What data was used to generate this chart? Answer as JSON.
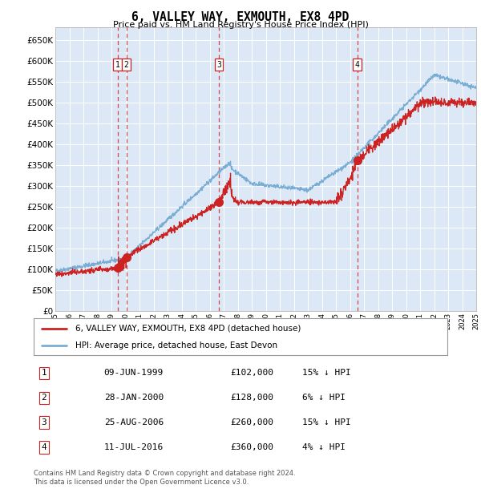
{
  "title": "6, VALLEY WAY, EXMOUTH, EX8 4PD",
  "subtitle": "Price paid vs. HM Land Registry's House Price Index (HPI)",
  "legend_line1": "6, VALLEY WAY, EXMOUTH, EX8 4PD (detached house)",
  "legend_line2": "HPI: Average price, detached house, East Devon",
  "table_rows": [
    [
      "1",
      "09-JUN-1999",
      "£102,000",
      "15% ↓ HPI"
    ],
    [
      "2",
      "28-JAN-2000",
      "£128,000",
      "6% ↓ HPI"
    ],
    [
      "3",
      "25-AUG-2006",
      "£260,000",
      "15% ↓ HPI"
    ],
    [
      "4",
      "11-JUL-2016",
      "£360,000",
      "4% ↓ HPI"
    ]
  ],
  "footer": [
    "Contains HM Land Registry data © Crown copyright and database right 2024.",
    "This data is licensed under the Open Government Licence v3.0."
  ],
  "hpi_color": "#7aadd4",
  "price_color": "#cc2222",
  "background_color": "#dce8f5",
  "ylim": [
    0,
    680000
  ],
  "yticks": [
    0,
    50000,
    100000,
    150000,
    200000,
    250000,
    300000,
    350000,
    400000,
    450000,
    500000,
    550000,
    600000,
    650000
  ],
  "x_start_year": 1995,
  "x_end_year": 2025,
  "sale_dates": [
    1999.44,
    2000.07,
    2006.65,
    2016.52
  ],
  "sale_prices": [
    102000,
    128000,
    260000,
    360000
  ],
  "sale_labels": [
    "1",
    "2",
    "3",
    "4"
  ],
  "vline_dates": [
    1999.44,
    2000.07,
    2006.65,
    2016.52
  ]
}
